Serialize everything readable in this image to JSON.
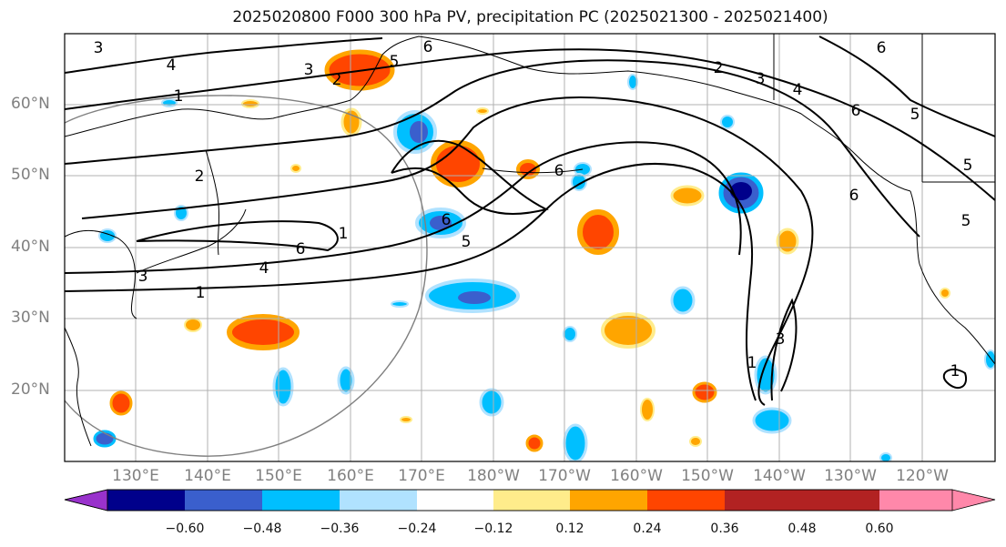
{
  "title": "2025020800 F000 300 hPa PV, precipitation PC (2025021300 - 2025021400)",
  "lat_labels": [
    "60°N",
    "50°N",
    "40°N",
    "30°N",
    "20°N"
  ],
  "lon_labels": [
    "130°E",
    "140°E",
    "150°E",
    "160°E",
    "170°E",
    "180°W",
    "170°W",
    "160°W",
    "150°W",
    "140°W",
    "130°W",
    "120°W"
  ],
  "contour_labels": [
    "3",
    "4",
    "6",
    "3",
    "5",
    "2",
    "1",
    "2",
    "6",
    "5",
    "1",
    "6",
    "4",
    "3",
    "1",
    "6",
    "2",
    "3",
    "4",
    "5",
    "6",
    "6",
    "5",
    "3",
    "1",
    "1",
    "5",
    "6"
  ],
  "colorbar": {
    "colors": [
      "#9932cc",
      "#00008b",
      "#3a5fcd",
      "#00bfff",
      "#b0e2ff",
      "#ffffff",
      "#ffec8b",
      "#ffa500",
      "#ff4500",
      "#b22222",
      "#ff88aa"
    ],
    "tick_labels": [
      "−0.60",
      "−0.48",
      "−0.36",
      "−0.24",
      "−0.12",
      "0.12",
      "0.24",
      "0.36",
      "0.48",
      "0.60"
    ]
  }
}
